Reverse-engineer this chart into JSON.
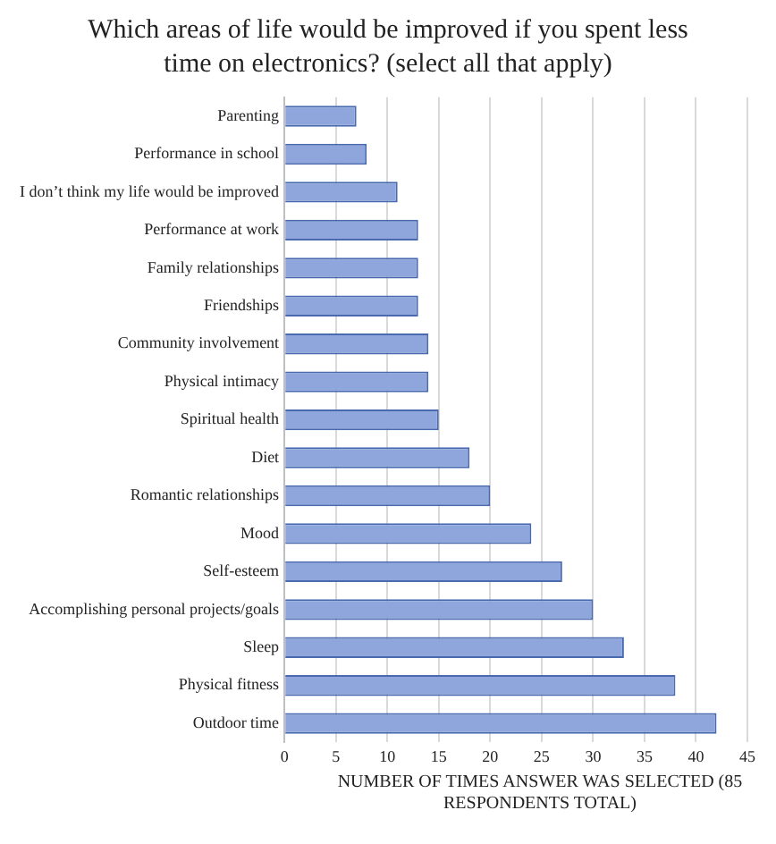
{
  "chart_data": {
    "type": "bar",
    "orientation": "horizontal",
    "title": "Which areas of life would be improved if you spent less time on electronics? (select all that apply)",
    "xlabel": "NUMBER OF TIMES ANSWER WAS SELECTED (85 RESPONDENTS TOTAL)",
    "categories": [
      "Parenting",
      "Performance in school",
      "I don’t think my life would be improved",
      "Performance at work",
      "Family relationships",
      "Friendships",
      "Community involvement",
      "Physical intimacy",
      "Spiritual health",
      "Diet",
      "Romantic relationships",
      "Mood",
      "Self-esteem",
      "Accomplishing personal projects/goals",
      "Sleep",
      "Physical fitness",
      "Outdoor time"
    ],
    "values": [
      7,
      8,
      11,
      13,
      13,
      13,
      14,
      14,
      15,
      18,
      20,
      24,
      27,
      30,
      33,
      38,
      42
    ],
    "color": "#8ea6dc",
    "xlim": [
      0,
      45
    ],
    "xticks": [
      0,
      5,
      10,
      15,
      20,
      25,
      30,
      35,
      40,
      45
    ],
    "grid": "x",
    "legend": false
  }
}
